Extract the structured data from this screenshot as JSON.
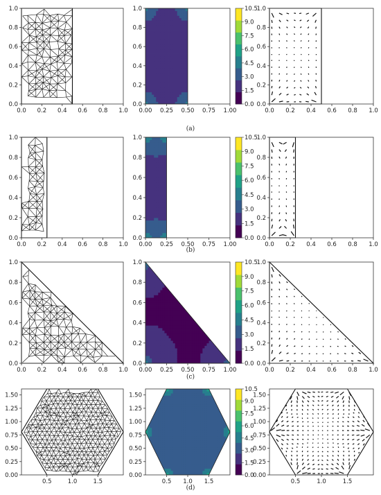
{
  "figure": {
    "colorbar_ticks": [
      "0.0",
      "1.5",
      "3.0",
      "4.5",
      "6.0",
      "7.5",
      "9.0",
      "10.5"
    ],
    "colormap": [
      "#440154",
      "#46327e",
      "#365c8d",
      "#277f8e",
      "#1fa187",
      "#4ac16d",
      "#a0da39",
      "#fde725"
    ],
    "rows": [
      {
        "label": "(a)",
        "shape": "rectangle 0.5 x 1",
        "panels": {
          "mesh": {
            "xticks": [
              "0.0",
              "0.2",
              "0.4",
              "0.6",
              "0.8",
              "1.0"
            ],
            "yticks": [
              "0.0",
              "0.2",
              "0.4",
              "0.6",
              "0.8",
              "1.0"
            ]
          },
          "contour": {
            "xticks": [
              "0.00",
              "0.25",
              "0.50",
              "0.75",
              "1.00"
            ],
            "yticks": [
              "0.0",
              "0.2",
              "0.4",
              "0.6",
              "0.8",
              "1.0"
            ]
          },
          "quiver": {
            "xticks": [
              "0.0",
              "0.2",
              "0.4",
              "0.6",
              "0.8",
              "1.0"
            ],
            "yticks": [
              "0.0",
              "0.2",
              "0.4",
              "0.6",
              "0.8",
              "1.0"
            ]
          }
        }
      },
      {
        "label": "(b)",
        "shape": "rectangle 0.25 x 1",
        "panels": {
          "mesh": {
            "xticks": [
              "0.0",
              "0.2",
              "0.4",
              "0.6",
              "0.8",
              "1.0"
            ],
            "yticks": [
              "0.0",
              "0.2",
              "0.4",
              "0.6",
              "0.8",
              "1.0"
            ]
          },
          "contour": {
            "xticks": [
              "0.00",
              "0.25",
              "0.50",
              "0.75",
              "1.00"
            ],
            "yticks": [
              "0.0",
              "0.2",
              "0.4",
              "0.6",
              "0.8",
              "1.0"
            ]
          },
          "quiver": {
            "xticks": [
              "0.0",
              "0.2",
              "0.4",
              "0.6",
              "0.8",
              "1.0"
            ],
            "yticks": [
              "0.0",
              "0.2",
              "0.4",
              "0.6",
              "0.8",
              "1.0"
            ]
          }
        }
      },
      {
        "label": "(c)",
        "shape": "right triangle",
        "panels": {
          "mesh": {
            "xticks": [
              "0.0",
              "0.2",
              "0.4",
              "0.6",
              "0.8",
              "1.0"
            ],
            "yticks": [
              "0.0",
              "0.2",
              "0.4",
              "0.6",
              "0.8",
              "1.0"
            ]
          },
          "contour": {
            "xticks": [
              "0.00",
              "0.25",
              "0.50",
              "0.75",
              "1.00"
            ],
            "yticks": [
              "0.0",
              "0.2",
              "0.4",
              "0.6",
              "0.8",
              "1.0"
            ]
          },
          "quiver": {
            "xticks": [
              "0.0",
              "0.2",
              "0.4",
              "0.6",
              "0.8",
              "1.0"
            ],
            "yticks": [
              "0.0",
              "0.2",
              "0.4",
              "0.6",
              "0.8",
              "1.0"
            ]
          }
        }
      },
      {
        "label": "(d)",
        "shape": "hexagon",
        "panels": {
          "mesh": {
            "xticks": [
              "0.5",
              "1.0",
              "1.5"
            ],
            "yticks": [
              "0.00",
              "0.25",
              "0.50",
              "0.75",
              "1.00",
              "1.25",
              "1.50"
            ]
          },
          "contour": {
            "xticks": [
              "0.5",
              "1.0",
              "1.5"
            ],
            "yticks": [
              "0.00",
              "0.25",
              "0.50",
              "0.75",
              "1.00",
              "1.25",
              "1.50"
            ]
          },
          "quiver": {
            "xticks": [
              "0.5",
              "1.0",
              "1.5"
            ],
            "yticks": [
              "0.00",
              "0.25",
              "0.50",
              "0.75",
              "1.00",
              "1.25",
              "1.50"
            ]
          }
        }
      }
    ]
  }
}
